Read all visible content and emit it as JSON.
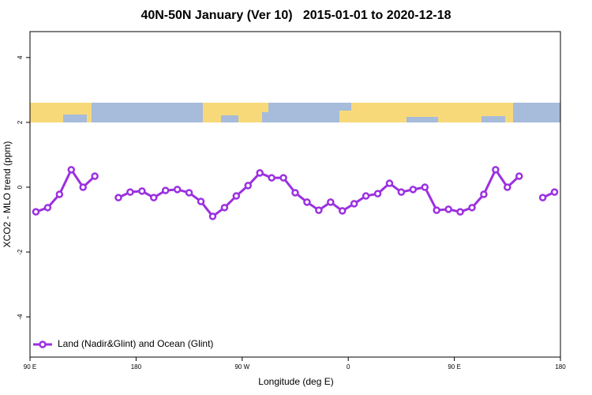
{
  "chart_data": {
    "type": "line",
    "title": "40N-50N January (Ver 10)   2015-01-01 to 2020-12-18",
    "xlabel": "Longitude (deg E)",
    "ylabel": "XCO2 - MLO trend (ppm)",
    "xlim": [
      90,
      540
    ],
    "xticks": [
      {
        "value": 90,
        "label": "90 E"
      },
      180,
      {
        "value": 270,
        "label": "90 W"
      },
      {
        "value": 360,
        "label": "0"
      },
      {
        "value": 450,
        "label": "90 E"
      },
      {
        "value": 540,
        "label": "180"
      }
    ],
    "ylim": [
      -5.24,
      4.8
    ],
    "yticks": [
      -4,
      -2,
      0,
      2,
      4
    ],
    "legend": "bottomleft",
    "series": [
      {
        "name": "Land (Nadir&Glint) and Ocean (Glint)",
        "color": "#9b30e0",
        "x": [
          95,
          105,
          115,
          125,
          135,
          145,
          155,
          165,
          175,
          185,
          195,
          205,
          215,
          225,
          235,
          245,
          255,
          265,
          275,
          285,
          295,
          305,
          315,
          325,
          335,
          345,
          355,
          365,
          375,
          385,
          395,
          405,
          415,
          425,
          435,
          445,
          455,
          465,
          475,
          485,
          495,
          505,
          515,
          525,
          535
        ],
        "values": [
          -0.76,
          -0.63,
          -0.22,
          0.54,
          0.0,
          0.34,
          null,
          -0.32,
          -0.15,
          -0.12,
          -0.32,
          -0.1,
          -0.07,
          -0.17,
          -0.44,
          -0.9,
          -0.63,
          -0.27,
          0.05,
          0.44,
          0.29,
          0.29,
          -0.17,
          -0.46,
          -0.71,
          -0.46,
          -0.73,
          -0.51,
          -0.27,
          -0.2,
          0.12,
          -0.15,
          -0.07,
          0.0,
          -0.71,
          -0.68,
          -0.76,
          -0.63,
          -0.22,
          0.54,
          0.0,
          0.34,
          null,
          -0.32,
          -0.15
        ]
      }
    ]
  }
}
